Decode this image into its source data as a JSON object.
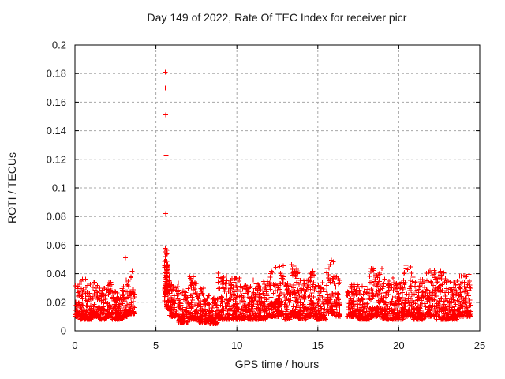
{
  "window": {
    "title": "Day 149 of 2022, Rate Of TEC Index for receiver picr"
  },
  "chart_data": {
    "type": "scatter",
    "title": "Day 149 of 2022, Rate Of TEC Index for receiver picr",
    "xlabel": "GPS time / hours",
    "ylabel": "ROTI / TECUs",
    "xlim": [
      0,
      25
    ],
    "ylim": [
      0,
      0.2
    ],
    "xticks": [
      0,
      5,
      10,
      15,
      20,
      25
    ],
    "xtick_labels": [
      "0",
      "5",
      "10",
      "15",
      "20",
      "25"
    ],
    "yticks": [
      0,
      0.02,
      0.04,
      0.06,
      0.08,
      0.1,
      0.12,
      0.14,
      0.16,
      0.18,
      0.2
    ],
    "ytick_labels": [
      "0",
      "0.02",
      "0.04",
      "0.06",
      "0.08",
      "0.1",
      "0.12",
      "0.14",
      "0.16",
      "0.18",
      "0.2"
    ],
    "grid": "dashed gray lines at every major tick, ticks mirrored inward on all four borders",
    "legend": "none",
    "marker": "plus",
    "marker_color": "#ff0000",
    "grid_color": "#a8a8a8",
    "axis_color": "#000000",
    "background_color": "#ffffff",
    "seed": 149,
    "density_per_hour": 140,
    "outliers": [
      [
        5.59,
        0.181
      ],
      [
        5.59,
        0.17
      ],
      [
        5.61,
        0.151
      ],
      [
        5.62,
        0.123
      ],
      [
        5.61,
        0.082
      ],
      [
        3.13,
        0.051
      ]
    ],
    "data_gaps_hours": [
      [
        3.68,
        5.52
      ],
      [
        16.4,
        16.8
      ]
    ],
    "bands": [
      {
        "x0": 0.0,
        "x1": 0.3,
        "lo": 0.01,
        "hi": 0.032
      },
      {
        "x0": 0.3,
        "x1": 0.7,
        "lo": 0.008,
        "hi": 0.038
      },
      {
        "x0": 0.7,
        "x1": 1.1,
        "lo": 0.008,
        "hi": 0.033
      },
      {
        "x0": 1.1,
        "x1": 1.5,
        "lo": 0.01,
        "hi": 0.036
      },
      {
        "x0": 1.5,
        "x1": 1.9,
        "lo": 0.008,
        "hi": 0.03
      },
      {
        "x0": 1.9,
        "x1": 2.3,
        "lo": 0.01,
        "hi": 0.034
      },
      {
        "x0": 2.3,
        "x1": 2.7,
        "lo": 0.008,
        "hi": 0.028
      },
      {
        "x0": 2.7,
        "x1": 3.0,
        "lo": 0.008,
        "hi": 0.031
      },
      {
        "x0": 3.0,
        "x1": 3.35,
        "lo": 0.01,
        "hi": 0.038
      },
      {
        "x0": 3.35,
        "x1": 3.68,
        "lo": 0.012,
        "hi": 0.044
      },
      {
        "x0": 5.52,
        "x1": 5.64,
        "lo": 0.02,
        "hi": 0.05,
        "n": 30,
        "skew": 1.3
      },
      {
        "x0": 5.56,
        "x1": 5.72,
        "lo": 0.024,
        "hi": 0.058,
        "n": 40,
        "skew": 1.2
      },
      {
        "x0": 5.62,
        "x1": 5.85,
        "lo": 0.016,
        "hi": 0.045,
        "n": 45,
        "skew": 1.6
      },
      {
        "x0": 5.85,
        "x1": 6.4,
        "lo": 0.01,
        "hi": 0.034
      },
      {
        "x0": 6.4,
        "x1": 7.0,
        "lo": 0.006,
        "hi": 0.028
      },
      {
        "x0": 7.0,
        "x1": 7.6,
        "lo": 0.008,
        "hi": 0.038
      },
      {
        "x0": 7.6,
        "x1": 8.3,
        "lo": 0.006,
        "hi": 0.03
      },
      {
        "x0": 8.3,
        "x1": 8.8,
        "lo": 0.005,
        "hi": 0.026
      },
      {
        "x0": 8.8,
        "x1": 9.6,
        "lo": 0.008,
        "hi": 0.042
      },
      {
        "x0": 9.6,
        "x1": 10.2,
        "lo": 0.008,
        "hi": 0.038
      },
      {
        "x0": 10.2,
        "x1": 11.0,
        "lo": 0.008,
        "hi": 0.032
      },
      {
        "x0": 11.0,
        "x1": 11.8,
        "lo": 0.008,
        "hi": 0.036
      },
      {
        "x0": 11.8,
        "x1": 12.3,
        "lo": 0.01,
        "hi": 0.042
      },
      {
        "x0": 12.3,
        "x1": 12.9,
        "lo": 0.01,
        "hi": 0.048
      },
      {
        "x0": 12.9,
        "x1": 13.3,
        "lo": 0.008,
        "hi": 0.036
      },
      {
        "x0": 13.3,
        "x1": 13.8,
        "lo": 0.01,
        "hi": 0.047
      },
      {
        "x0": 13.8,
        "x1": 14.3,
        "lo": 0.008,
        "hi": 0.036
      },
      {
        "x0": 14.3,
        "x1": 14.9,
        "lo": 0.01,
        "hi": 0.042
      },
      {
        "x0": 14.9,
        "x1": 15.5,
        "lo": 0.008,
        "hi": 0.034
      },
      {
        "x0": 15.5,
        "x1": 16.05,
        "lo": 0.012,
        "hi": 0.05
      },
      {
        "x0": 16.05,
        "x1": 16.4,
        "lo": 0.01,
        "hi": 0.038
      },
      {
        "x0": 16.8,
        "x1": 17.5,
        "lo": 0.01,
        "hi": 0.034
      },
      {
        "x0": 17.5,
        "x1": 18.2,
        "lo": 0.008,
        "hi": 0.032
      },
      {
        "x0": 18.2,
        "x1": 19.0,
        "lo": 0.01,
        "hi": 0.044
      },
      {
        "x0": 19.0,
        "x1": 19.7,
        "lo": 0.008,
        "hi": 0.038
      },
      {
        "x0": 19.7,
        "x1": 20.3,
        "lo": 0.008,
        "hi": 0.034
      },
      {
        "x0": 20.3,
        "x1": 20.9,
        "lo": 0.01,
        "hi": 0.046
      },
      {
        "x0": 20.9,
        "x1": 21.6,
        "lo": 0.008,
        "hi": 0.036
      },
      {
        "x0": 21.6,
        "x1": 22.3,
        "lo": 0.01,
        "hi": 0.043
      },
      {
        "x0": 22.3,
        "x1": 23.0,
        "lo": 0.008,
        "hi": 0.042
      },
      {
        "x0": 23.0,
        "x1": 23.6,
        "lo": 0.008,
        "hi": 0.035
      },
      {
        "x0": 23.6,
        "x1": 24.45,
        "lo": 0.01,
        "hi": 0.04
      }
    ]
  }
}
